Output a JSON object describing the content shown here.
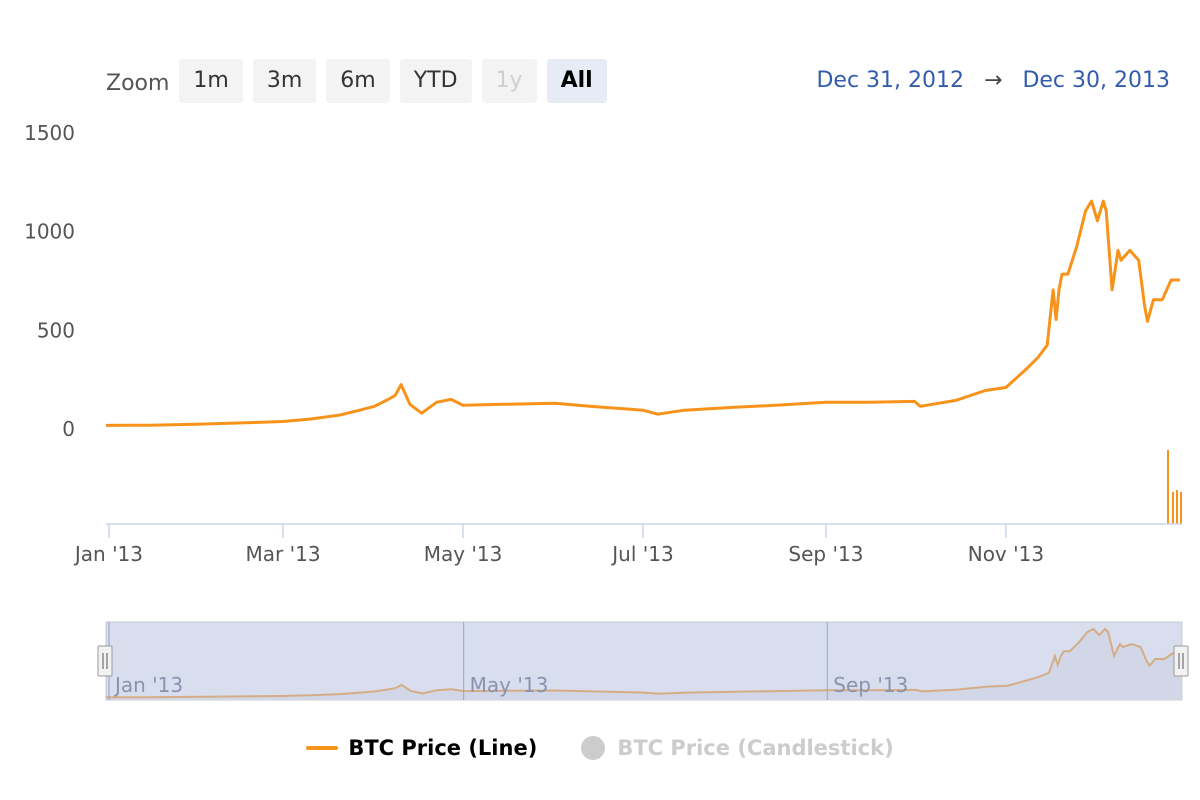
{
  "zoom": {
    "label": "Zoom",
    "buttons": [
      {
        "label": "1m",
        "state": "normal"
      },
      {
        "label": "3m",
        "state": "normal"
      },
      {
        "label": "6m",
        "state": "normal"
      },
      {
        "label": "YTD",
        "state": "normal"
      },
      {
        "label": "1y",
        "state": "disabled"
      },
      {
        "label": "All",
        "state": "selected"
      }
    ]
  },
  "range": {
    "from": "Dec 31, 2012",
    "arrow": "→",
    "to": "Dec 30, 2013"
  },
  "legend": {
    "line_series": "BTC Price (Line)",
    "candle_series": "BTC Price (Candlestick)"
  },
  "navigator": {
    "x_tick_labels": [
      "Jan '13",
      "May '13",
      "Sep '13"
    ]
  },
  "colors": {
    "series": "#f7931a",
    "navigator_mask": "#d8ddee",
    "hidden": "#cccccc"
  },
  "chart_data": {
    "type": "line",
    "title": "",
    "xlabel": "",
    "ylabel": "",
    "y_ticks": [
      0,
      500,
      1000,
      1500
    ],
    "ylim": [
      0,
      1500
    ],
    "x_range": [
      "2012-12-31",
      "2013-12-30"
    ],
    "x_tick_labels": [
      {
        "date": "2013-01-01",
        "label": "Jan '13"
      },
      {
        "date": "2013-03-01",
        "label": "Mar '13"
      },
      {
        "date": "2013-05-01",
        "label": "May '13"
      },
      {
        "date": "2013-07-01",
        "label": "Jul '13"
      },
      {
        "date": "2013-09-01",
        "label": "Sep '13"
      },
      {
        "date": "2013-11-01",
        "label": "Nov '13"
      }
    ],
    "grid": false,
    "legend_position": "bottom-center",
    "series": [
      {
        "name": "BTC Price (Line)",
        "x": [
          "2012-12-31",
          "2013-01-15",
          "2013-02-01",
          "2013-02-15",
          "2013-03-01",
          "2013-03-10",
          "2013-03-20",
          "2013-03-27",
          "2013-04-01",
          "2013-04-05",
          "2013-04-08",
          "2013-04-10",
          "2013-04-13",
          "2013-04-17",
          "2013-04-22",
          "2013-04-27",
          "2013-05-01",
          "2013-05-15",
          "2013-06-01",
          "2013-06-15",
          "2013-07-01",
          "2013-07-06",
          "2013-07-15",
          "2013-08-01",
          "2013-08-15",
          "2013-09-01",
          "2013-09-15",
          "2013-10-01",
          "2013-10-03",
          "2013-10-15",
          "2013-10-25",
          "2013-11-01",
          "2013-11-08",
          "2013-11-12",
          "2013-11-15",
          "2013-11-17",
          "2013-11-18",
          "2013-11-19",
          "2013-11-20",
          "2013-11-22",
          "2013-11-25",
          "2013-11-28",
          "2013-11-30",
          "2013-12-02",
          "2013-12-04",
          "2013-12-05",
          "2013-12-07",
          "2013-12-09",
          "2013-12-10",
          "2013-12-13",
          "2013-12-16",
          "2013-12-18",
          "2013-12-19",
          "2013-12-21",
          "2013-12-24",
          "2013-12-27",
          "2013-12-30"
        ],
        "values": [
          13,
          14,
          20,
          26,
          33,
          45,
          65,
          90,
          110,
          140,
          165,
          220,
          120,
          75,
          130,
          145,
          115,
          120,
          125,
          108,
          90,
          70,
          90,
          105,
          115,
          130,
          130,
          135,
          110,
          140,
          190,
          205,
          300,
          360,
          420,
          700,
          550,
          700,
          780,
          780,
          920,
          1100,
          1150,
          1050,
          1150,
          1100,
          700,
          900,
          850,
          900,
          850,
          620,
          540,
          650,
          650,
          750,
          750
        ]
      },
      {
        "name": "BTC Price (Candlestick)",
        "visible": false
      }
    ]
  }
}
